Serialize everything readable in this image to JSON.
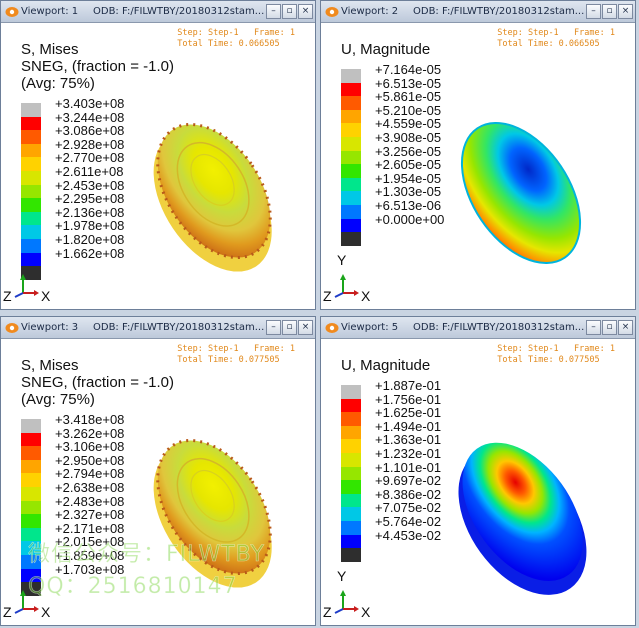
{
  "viewports": [
    {
      "name": "Viewport: 1",
      "odb": "ODB: F:/FILWTBY/20180312stam...",
      "step": "Step: Step-1",
      "frame": "Frame: 1",
      "total_time": "Total Time: 0.066505",
      "title_lines": [
        "S, Mises",
        "SNEG, (fraction = -1.0)",
        "(Avg: 75%)"
      ],
      "legend": [
        "+3.403e+08",
        "+3.244e+08",
        "+3.086e+08",
        "+2.928e+08",
        "+2.770e+08",
        "+2.611e+08",
        "+2.453e+08",
        "+2.295e+08",
        "+2.136e+08",
        "+1.978e+08",
        "+1.820e+08",
        "+1.662e+08"
      ],
      "triad": {
        "y": "Y",
        "z": "Z",
        "x": "X"
      }
    },
    {
      "name": "Viewport: 2",
      "odb": "ODB: F:/FILWTBY/20180312stam...",
      "step": "Step: Step-1",
      "frame": "Frame: 1",
      "total_time": "Total Time: 0.066505",
      "title_lines": [
        "U, Magnitude"
      ],
      "legend": [
        "+7.164e-05",
        "+6.513e-05",
        "+5.861e-05",
        "+5.210e-05",
        "+4.559e-05",
        "+3.908e-05",
        "+3.256e-05",
        "+2.605e-05",
        "+1.954e-05",
        "+1.303e-05",
        "+6.513e-06",
        "+0.000e+00"
      ],
      "triad": {
        "y": "Y",
        "z": "Z",
        "x": "X"
      }
    },
    {
      "name": "Viewport: 3",
      "odb": "ODB: F:/FILWTBY/20180312stam...",
      "step": "Step: Step-1",
      "frame": "Frame: 1",
      "total_time": "Total Time: 0.077505",
      "title_lines": [
        "S, Mises",
        "SNEG, (fraction = -1.0)",
        "(Avg: 75%)"
      ],
      "legend": [
        "+3.418e+08",
        "+3.262e+08",
        "+3.106e+08",
        "+2.950e+08",
        "+2.794e+08",
        "+2.638e+08",
        "+2.483e+08",
        "+2.327e+08",
        "+2.171e+08",
        "+2.015e+08",
        "+1.859e+08",
        "+1.703e+08"
      ],
      "triad": {
        "y": "Y",
        "z": "Z",
        "x": "X"
      }
    },
    {
      "name": "Viewport: 5",
      "odb": "ODB: F:/FILWTBY/20180312stam...",
      "step": "Step: Step-1",
      "frame": "Frame: 1",
      "total_time": "Total Time: 0.077505",
      "title_lines": [
        "U, Magnitude"
      ],
      "legend": [
        "+1.887e-01",
        "+1.756e-01",
        "+1.625e-01",
        "+1.494e-01",
        "+1.363e-01",
        "+1.232e-01",
        "+1.101e-01",
        "+9.697e-02",
        "+8.386e-02",
        "+7.075e-02",
        "+5.764e-02",
        "+4.453e-02"
      ],
      "triad": {
        "y": "Y",
        "z": "Z",
        "x": "X"
      }
    }
  ],
  "legend_colors": [
    "#c0c0c0",
    "#ff0000",
    "#ff5a00",
    "#ffa500",
    "#ffd200",
    "#d8e600",
    "#96e600",
    "#32e600",
    "#00e68c",
    "#00c8e6",
    "#0078ff",
    "#0000ff",
    "#2e2e2e"
  ],
  "watermark": {
    "line1": "微信公众号：FILWTBY",
    "line2": "QQ：2516810147"
  },
  "window_buttons": {
    "minimize": "–",
    "restore": "▫",
    "close": "×"
  }
}
